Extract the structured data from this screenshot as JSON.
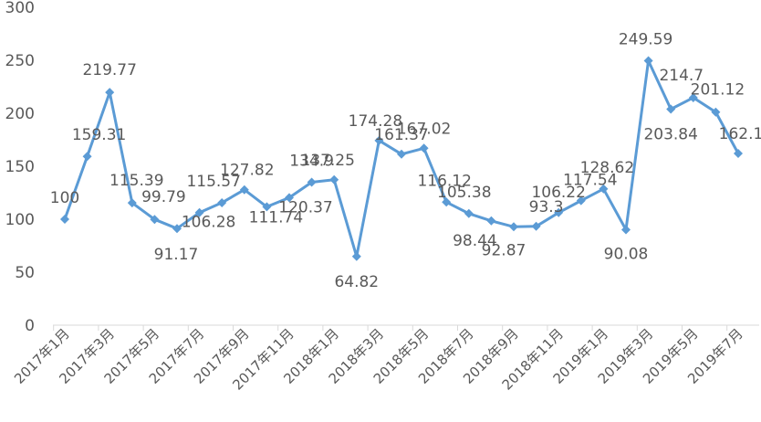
{
  "chart_data": {
    "type": "line",
    "title": "",
    "xlabel": "",
    "ylabel": "",
    "ylim": [
      0,
      300
    ],
    "yticks": [
      "0",
      "50",
      "100",
      "150",
      "200",
      "250",
      "300"
    ],
    "grid": false,
    "legend": "none",
    "series_color": "#5b9bd5",
    "categories": [
      "2017年1月",
      "2017年2月",
      "2017年3月",
      "2017年4月",
      "2017年5月",
      "2017年6月",
      "2017年7月",
      "2017年8月",
      "2017年9月",
      "2017年10月",
      "2017年11月",
      "2017年12月",
      "2018年1月",
      "2018年2月",
      "2018年3月",
      "2018年4月",
      "2018年5月",
      "2018年6月",
      "2018年7月",
      "2018年8月",
      "2018年9月",
      "2018年10月",
      "2018年11月",
      "2018年12月",
      "2019年1月",
      "2019年2月",
      "2019年3月",
      "2019年4月",
      "2019年5月",
      "2019年6月",
      "2019年7月"
    ],
    "tick_labels": [
      "2017年1月",
      "2017年3月",
      "2017年5月",
      "2017年7月",
      "2017年9月",
      "2017年11月",
      "2018年1月",
      "2018年3月",
      "2018年5月",
      "2018年7月",
      "2018年9月",
      "2018年11月",
      "2019年1月",
      "2019年3月",
      "2019年5月",
      "2019年7月"
    ],
    "values": [
      100,
      159.31,
      219.77,
      115.39,
      99.79,
      91.17,
      106.28,
      115.57,
      127.82,
      111.74,
      120.37,
      134.9,
      137.25,
      64.82,
      174.28,
      161.37,
      167.02,
      116.12,
      105.38,
      98.44,
      92.87,
      93.3,
      106.22,
      117.54,
      128.62,
      90.08,
      249.59,
      203.84,
      214.7,
      201.12,
      162.1
    ],
    "value_labels": [
      "100",
      "159.31",
      "219.77",
      "115.39",
      "99.79",
      "91.17",
      "106.28",
      "115.57",
      "127.82",
      "111.74",
      "120.37",
      "134.9",
      "137.25",
      "64.82",
      "174.28",
      "161.37",
      "167.02",
      "116.12",
      "105.38",
      "98.44",
      "92.87",
      "93.3",
      "106.22",
      "117.54",
      "128.62",
      "90.08",
      "249.59",
      "203.84",
      "214.7",
      "201.12",
      "162.1"
    ]
  }
}
